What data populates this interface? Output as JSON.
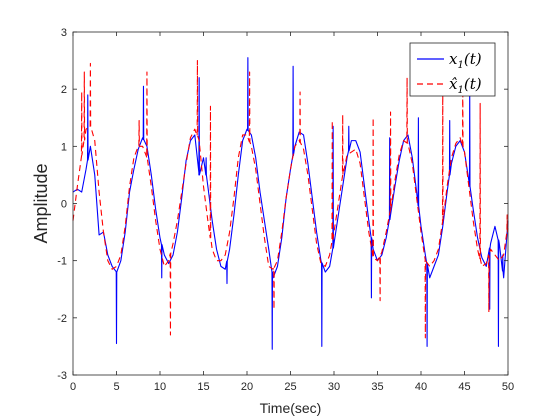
{
  "chart_data": {
    "type": "line",
    "xlabel": "Time(sec)",
    "ylabel": "Amplitude",
    "xlim": [
      0,
      50
    ],
    "ylim": [
      -3,
      3
    ],
    "xticks": [
      0,
      5,
      10,
      15,
      20,
      25,
      30,
      35,
      40,
      45,
      50
    ],
    "yticks": [
      -3,
      -2,
      -1,
      0,
      1,
      2,
      3
    ],
    "grid": false,
    "legend_position": "top-right",
    "series": [
      {
        "name": "x_1(t)",
        "color": "#0000ff",
        "style": "solid",
        "x": [
          0,
          0.5,
          1,
          1.5,
          2,
          2.5,
          3,
          3.5,
          4,
          4.5,
          5,
          5.5,
          6,
          6.5,
          7,
          7.5,
          8,
          8.5,
          9,
          9.5,
          10,
          10.5,
          11,
          11.5,
          12,
          12.5,
          13,
          13.5,
          14,
          14.5,
          15,
          15.5,
          16,
          16.5,
          17,
          17.5,
          18,
          18.5,
          19,
          19.5,
          20,
          20.5,
          21,
          21.5,
          22,
          22.5,
          23,
          23.5,
          24,
          24.5,
          25,
          25.5,
          26,
          26.5,
          27,
          27.5,
          28,
          28.5,
          29,
          29.5,
          30,
          30.5,
          31,
          31.5,
          32,
          32.5,
          33,
          33.5,
          34,
          34.5,
          35,
          35.5,
          36,
          36.5,
          37,
          37.5,
          38,
          38.5,
          39,
          39.5,
          40,
          40.5,
          41,
          41.5,
          42,
          42.5,
          43,
          43.5,
          44,
          44.5,
          45,
          45.5,
          46,
          46.5,
          47,
          47.5,
          48,
          48.5,
          49,
          49.5,
          50
        ],
        "y": [
          0.2,
          0.25,
          0.2,
          0.6,
          1.0,
          0.5,
          -0.55,
          -0.5,
          -0.9,
          -1.1,
          -1.2,
          -1.0,
          -0.5,
          0.2,
          0.6,
          0.95,
          1.15,
          1.0,
          0.5,
          -0.1,
          -0.6,
          -0.9,
          -1.05,
          -0.9,
          -0.5,
          0.1,
          0.75,
          1.1,
          1.2,
          0.5,
          0.8,
          0.3,
          -0.3,
          -0.8,
          -1.1,
          -1.15,
          -0.8,
          -0.2,
          0.5,
          1.1,
          1.3,
          1.2,
          0.8,
          0.2,
          -0.3,
          -0.8,
          -1.3,
          -1.1,
          -0.6,
          0.1,
          0.6,
          1.0,
          1.25,
          1.2,
          0.7,
          0.1,
          -0.5,
          -1.0,
          -1.2,
          -1.1,
          -0.7,
          -0.2,
          0.3,
          0.8,
          1.1,
          1.1,
          0.9,
          0.3,
          -0.3,
          -0.8,
          -1.0,
          -0.9,
          -0.6,
          -0.2,
          0.3,
          0.75,
          1.1,
          1.2,
          0.8,
          0.2,
          -0.4,
          -0.9,
          -1.3,
          -1.1,
          -0.9,
          -0.4,
          0.2,
          0.7,
          1.0,
          1.1,
          0.9,
          0.4,
          -0.1,
          -0.6,
          -0.95,
          -1.1,
          -0.7,
          -0.4,
          -0.7,
          -1.3,
          -0.3
        ],
        "spikes": [
          [
            1.7,
            1.9
          ],
          [
            5.0,
            -2.45
          ],
          [
            8.1,
            2.05
          ],
          [
            10.2,
            -1.3
          ],
          [
            14.5,
            2.2
          ],
          [
            15.3,
            0.8
          ],
          [
            17.7,
            -1.4
          ],
          [
            20.1,
            2.55
          ],
          [
            22.9,
            -2.55
          ],
          [
            25.3,
            2.4
          ],
          [
            28.6,
            -2.5
          ],
          [
            29.9,
            1.35
          ],
          [
            31.7,
            1.35
          ],
          [
            34.3,
            -1.65
          ],
          [
            36.4,
            1.15
          ],
          [
            39.7,
            1.5
          ],
          [
            40.7,
            -2.5
          ],
          [
            43.3,
            1.45
          ],
          [
            45.6,
            2.0
          ],
          [
            47.9,
            -1.85
          ],
          [
            48.9,
            -2.5
          ],
          [
            49.4,
            -0.9
          ]
        ]
      },
      {
        "name": "x̂_1(t)",
        "color": "#ff0000",
        "style": "dashed",
        "x": [
          0,
          0.5,
          1,
          1.5,
          2,
          2.5,
          3,
          3.5,
          4,
          4.5,
          5,
          5.5,
          6,
          6.5,
          7,
          7.5,
          8,
          8.5,
          9,
          9.5,
          10,
          10.5,
          11,
          11.5,
          12,
          12.5,
          13,
          13.5,
          14,
          14.5,
          15,
          15.5,
          16,
          16.5,
          17,
          17.5,
          18,
          18.5,
          19,
          19.5,
          20,
          20.5,
          21,
          21.5,
          22,
          22.5,
          23,
          23.5,
          24,
          24.5,
          25,
          25.5,
          26,
          26.5,
          27,
          27.5,
          28,
          28.5,
          29,
          29.5,
          30,
          30.5,
          31,
          31.5,
          32,
          32.5,
          33,
          33.5,
          34,
          34.5,
          35,
          35.5,
          36,
          36.5,
          37,
          37.5,
          38,
          38.5,
          39,
          39.5,
          40,
          40.5,
          41,
          41.5,
          42,
          42.5,
          43,
          43.5,
          44,
          44.5,
          45,
          45.5,
          46,
          46.5,
          47,
          47.5,
          48,
          48.5,
          49,
          49.5,
          50
        ],
        "y": [
          -0.3,
          0.3,
          0.85,
          1.3,
          1.35,
          1.1,
          0.2,
          -0.5,
          -1.0,
          -1.15,
          -1.1,
          -0.9,
          -0.4,
          0.3,
          0.8,
          1.0,
          1.0,
          0.8,
          0.3,
          -0.3,
          -0.8,
          -1.1,
          -1.0,
          -0.7,
          -0.3,
          0.2,
          0.7,
          1.15,
          1.3,
          1.1,
          0.3,
          -0.3,
          -0.8,
          -1.0,
          -1.0,
          -0.9,
          -0.5,
          0.1,
          0.8,
          1.2,
          1.2,
          1.0,
          0.6,
          0.0,
          -0.6,
          -1.1,
          -1.15,
          -1.0,
          -0.5,
          0.1,
          0.6,
          1.0,
          1.1,
          0.95,
          0.5,
          -0.1,
          -0.7,
          -1.05,
          -1.1,
          -0.9,
          -0.5,
          0.0,
          0.5,
          0.85,
          0.9,
          0.95,
          0.7,
          0.1,
          -0.5,
          -0.95,
          -1.0,
          -0.85,
          -0.5,
          -0.1,
          0.4,
          0.85,
          1.1,
          1.05,
          0.7,
          0.1,
          -0.5,
          -1.0,
          -1.1,
          -1.0,
          -0.8,
          -0.3,
          0.3,
          0.8,
          1.05,
          1.15,
          0.9,
          0.3,
          -0.3,
          -0.8,
          -1.1,
          -1.05,
          -0.8,
          -0.9,
          -1.0,
          -0.9,
          -0.4
        ],
        "spikes": [
          [
            1.0,
            1.95
          ],
          [
            1.3,
            2.3
          ],
          [
            2.0,
            2.45
          ],
          [
            7.6,
            1.45
          ],
          [
            8.5,
            2.3
          ],
          [
            11.2,
            -2.3
          ],
          [
            14.3,
            2.5
          ],
          [
            15.8,
            1.7
          ],
          [
            20.3,
            2.3
          ],
          [
            23.1,
            -1.85
          ],
          [
            26.1,
            1.95
          ],
          [
            29.8,
            1.45
          ],
          [
            31.0,
            1.55
          ],
          [
            34.5,
            1.5
          ],
          [
            35.3,
            -1.7
          ],
          [
            36.5,
            1.6
          ],
          [
            38.4,
            2.2
          ],
          [
            40.5,
            -2.35
          ],
          [
            42.5,
            2.15
          ],
          [
            44.8,
            2.1
          ],
          [
            46.8,
            1.75
          ],
          [
            47.8,
            -1.9
          ],
          [
            49.9,
            -0.2
          ]
        ]
      }
    ]
  },
  "legend": {
    "items": [
      {
        "label": "x_1(t)",
        "main": "x",
        "sub": "1",
        "rest": "(t)",
        "color": "#0000ff",
        "dash": ""
      },
      {
        "label": "x̂_1(t)",
        "main": "x̂",
        "sub": "1",
        "rest": "(t)",
        "color": "#ff0000",
        "dash": "6,4"
      }
    ]
  }
}
